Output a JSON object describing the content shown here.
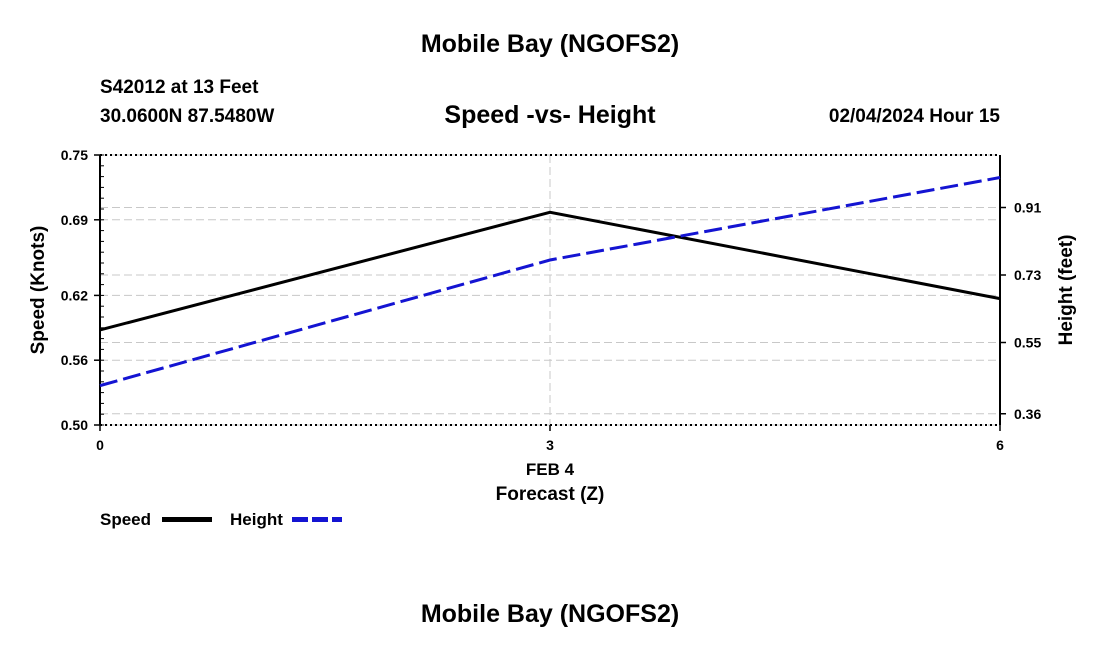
{
  "header": {
    "top_title": "Mobile Bay (NGOFS2)",
    "station": "S42012 at 13 Feet",
    "coords": "30.0600N  87.5480W",
    "subtitle": "Speed -vs- Height",
    "datetime": "02/04/2024 Hour 15"
  },
  "footer": {
    "bottom_title": "Mobile Bay (NGOFS2)"
  },
  "legend": {
    "speed_label": "Speed",
    "height_label": "Height"
  },
  "colors": {
    "speed": "#000000",
    "height": "#1414d2",
    "grid": "#c8c8c8"
  },
  "chart_data": {
    "type": "line",
    "title": "Speed -vs- Height",
    "xlabel": "Forecast (Z)",
    "xlabel_date": "FEB 4",
    "ylabel_left": "Speed (Knots)",
    "ylabel_right": "Height (feet)",
    "x": [
      0,
      3,
      6
    ],
    "xlim": [
      0,
      6
    ],
    "x_ticks": [
      "0",
      "3",
      "6"
    ],
    "ylim_left": [
      0.5,
      0.75
    ],
    "y_ticks_left": [
      "0.50",
      "0.56",
      "0.62",
      "0.69",
      "0.75"
    ],
    "ylim_right": [
      0.33,
      1.05
    ],
    "y_ticks_right": [
      "0.36",
      "0.55",
      "0.73",
      "0.91"
    ],
    "series": [
      {
        "name": "Speed",
        "axis": "left",
        "values": [
          0.588,
          0.697,
          0.617
        ]
      },
      {
        "name": "Height",
        "axis": "right",
        "values": [
          0.435,
          0.77,
          0.99
        ]
      }
    ]
  }
}
